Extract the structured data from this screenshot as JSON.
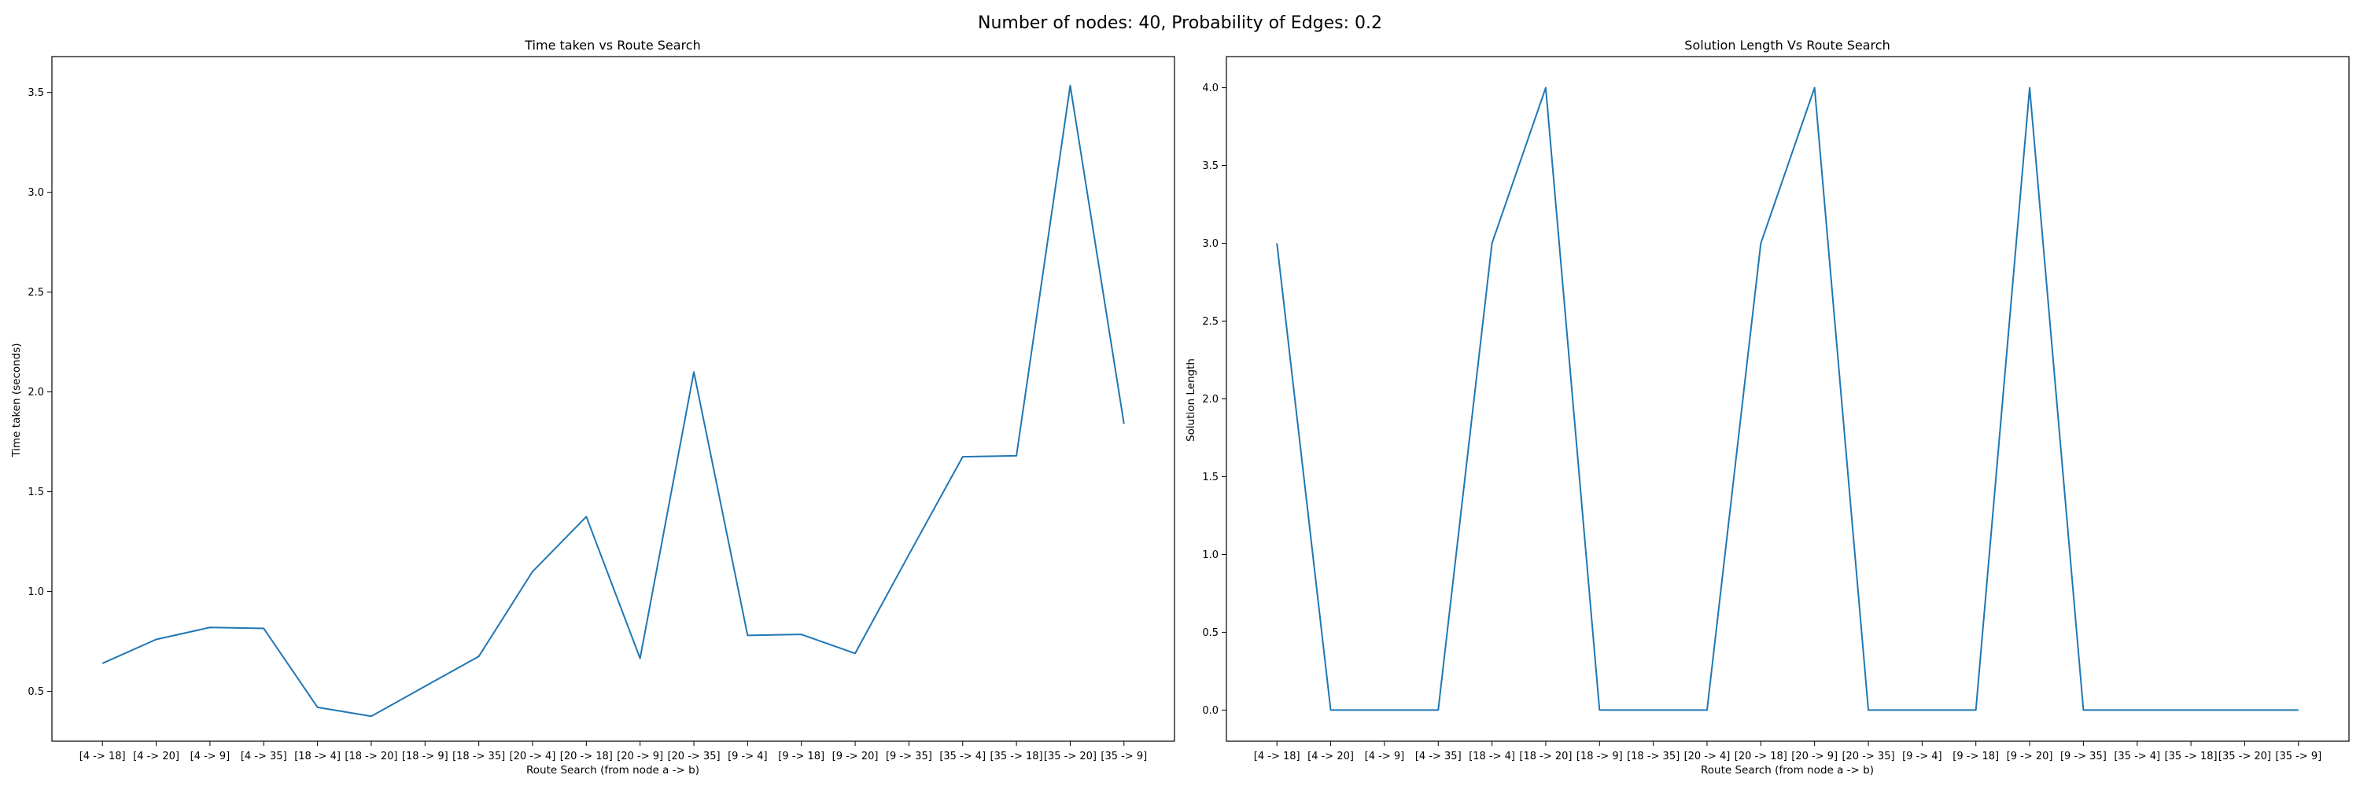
{
  "figure": {
    "suptitle": "Number of nodes: 40, Probability of Edges: 0.2"
  },
  "colors": {
    "line": "#1f77b4"
  },
  "chart_data": [
    {
      "type": "line",
      "title": "Time taken vs Route Search",
      "xlabel": "Route Search (from node a -> b)",
      "ylabel": "Time taken (seconds)",
      "ylim": [
        0.25,
        3.68
      ],
      "yticks": [
        0.5,
        1.0,
        1.5,
        2.0,
        2.5,
        3.0,
        3.5
      ],
      "categories": [
        "[4 -> 18]",
        "[4 -> 20]",
        "[4 -> 9]",
        "[4 -> 35]",
        "[18 -> 4]",
        "[18 -> 20]",
        "[18 -> 9]",
        "[18 -> 35]",
        "[20 -> 4]",
        "[20 -> 18]",
        "[20 -> 9]",
        "[20 -> 35]",
        "[9 -> 4]",
        "[9 -> 18]",
        "[9 -> 20]",
        "[9 -> 35]",
        "[35 -> 4]",
        "[35 -> 18]",
        "[35 -> 20]",
        "[35 -> 9]"
      ],
      "series": [
        {
          "values": [
            0.64,
            0.76,
            0.82,
            0.815,
            0.42,
            0.375,
            0.525,
            0.675,
            1.1,
            1.375,
            0.665,
            2.1,
            0.78,
            0.785,
            0.69,
            1.185,
            1.675,
            1.68,
            3.535,
            1.84
          ]
        }
      ]
    },
    {
      "type": "line",
      "title": "Solution Length Vs Route Search",
      "xlabel": "Route Search (from node a -> b)",
      "ylabel": "Solution Length",
      "ylim": [
        -0.2,
        4.2
      ],
      "yticks": [
        0.0,
        0.5,
        1.0,
        1.5,
        2.0,
        2.5,
        3.0,
        3.5,
        4.0
      ],
      "categories": [
        "[4 -> 18]",
        "[4 -> 20]",
        "[4 -> 9]",
        "[4 -> 35]",
        "[18 -> 4]",
        "[18 -> 20]",
        "[18 -> 9]",
        "[18 -> 35]",
        "[20 -> 4]",
        "[20 -> 18]",
        "[20 -> 9]",
        "[20 -> 35]",
        "[9 -> 4]",
        "[9 -> 18]",
        "[9 -> 20]",
        "[9 -> 35]",
        "[35 -> 4]",
        "[35 -> 18]",
        "[35 -> 20]",
        "[35 -> 9]"
      ],
      "series": [
        {
          "values": [
            3,
            0,
            0,
            0,
            3,
            4,
            0,
            0,
            0,
            3,
            4,
            0,
            0,
            0,
            4,
            0,
            0,
            0,
            0,
            0
          ]
        }
      ]
    }
  ]
}
